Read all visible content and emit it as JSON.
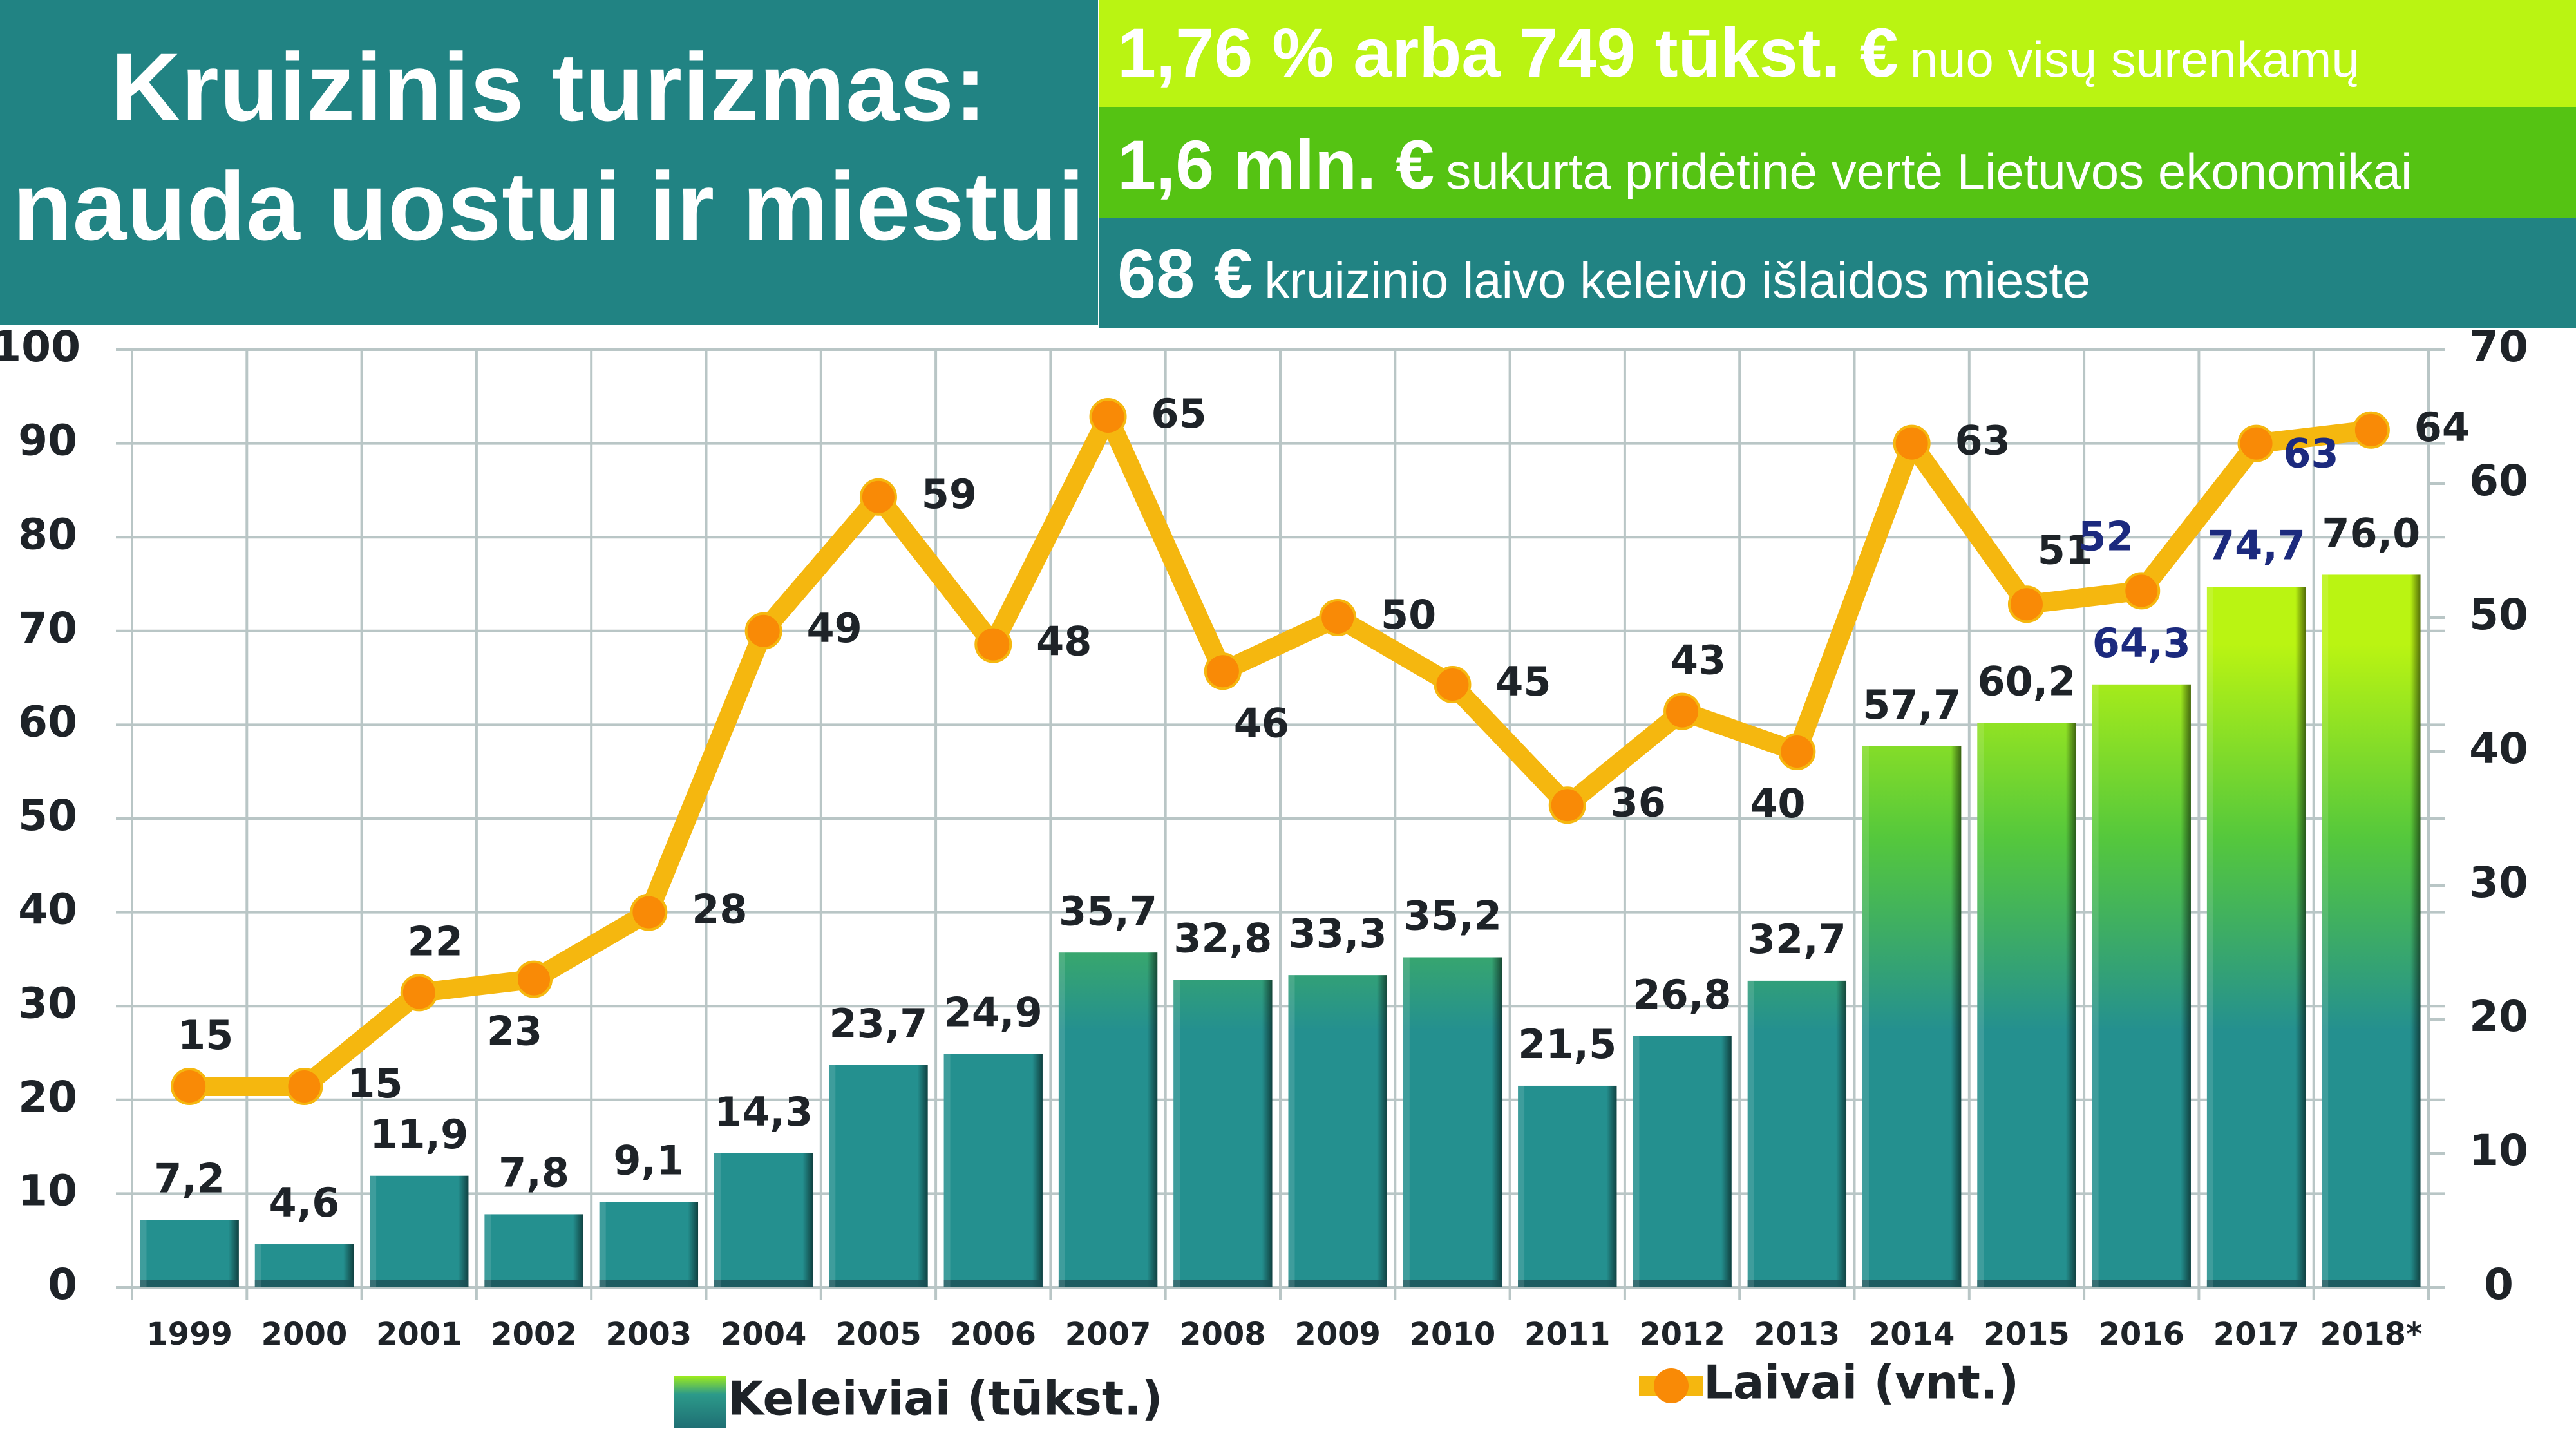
{
  "header": {
    "title_line1": "Kruizinis turizmas:",
    "title_line2": "nauda uostui ir miestui",
    "facts": [
      {
        "highlight": "1,76 % arba 749 tūkst. €",
        "text": "nuo visų surenkamų",
        "color": "#BAF412"
      },
      {
        "highlight": "1,6 mln. €",
        "text": "sukurta pridėtinė vertė Lietuvos ekonomikai",
        "color": "#55C313"
      },
      {
        "highlight": "68 €",
        "text": "kruizinio laivo keleivio išlaidos mieste",
        "color": "#218383"
      }
    ]
  },
  "chart_data": {
    "type": "bar",
    "title": "",
    "categories": [
      "1999",
      "2000",
      "2001",
      "2002",
      "2003",
      "2004",
      "2005",
      "2006",
      "2007",
      "2008",
      "2009",
      "2010",
      "2011",
      "2012",
      "2013",
      "2014",
      "2015",
      "2016",
      "2017",
      "2018*"
    ],
    "series": [
      {
        "name": "Keleiviai (tūkst.)",
        "type": "bar",
        "axis": "left",
        "values": [
          7.2,
          4.6,
          11.9,
          7.8,
          9.1,
          14.3,
          23.7,
          24.9,
          35.7,
          32.8,
          33.3,
          35.2,
          21.5,
          26.8,
          32.7,
          57.7,
          60.2,
          64.3,
          74.7,
          76.0
        ],
        "labels": [
          "7,2",
          "4,6",
          "11,9",
          "7,8",
          "9,1",
          "14,3",
          "23,7",
          "24,9",
          "35,7",
          "32,8",
          "33,3",
          "35,2",
          "21,5",
          "26,8",
          "32,7",
          "57,7",
          "60,2",
          "64,3",
          "74,7",
          "76,0"
        ],
        "highlighted_labels": [
          "64,3",
          "74,7"
        ],
        "color_top": "#BAF412",
        "color_bottom": "#24908F"
      },
      {
        "name": "Laivai (vnt.)",
        "type": "line",
        "axis": "right",
        "values": [
          15,
          15,
          22,
          23,
          28,
          49,
          59,
          48,
          65,
          46,
          50,
          45,
          36,
          43,
          40,
          63,
          51,
          52,
          63,
          64
        ],
        "labels": [
          "15",
          "15",
          "22",
          "23",
          "28",
          "49",
          "59",
          "48",
          "65",
          "46",
          "50",
          "45",
          "36",
          "43",
          "40",
          "63",
          "51",
          "52",
          "63",
          "64"
        ],
        "highlighted_label_indices": [
          17,
          18
        ],
        "line_color": "#F5B70F",
        "marker_color": "#F98A06"
      }
    ],
    "y_left": {
      "min": 0,
      "max": 100,
      "ticks": [
        "0",
        "10",
        "20",
        "30",
        "40",
        "50",
        "60",
        "70",
        "80",
        "90",
        "100"
      ]
    },
    "y_right": {
      "min": 0,
      "max": 70,
      "ticks": [
        "0",
        "10",
        "20",
        "30",
        "40",
        "50",
        "60",
        "70"
      ]
    },
    "grid": true,
    "legend_position": "bottom",
    "label_color": "#1E2328",
    "highlight_label_color": "#1C2A7E"
  }
}
